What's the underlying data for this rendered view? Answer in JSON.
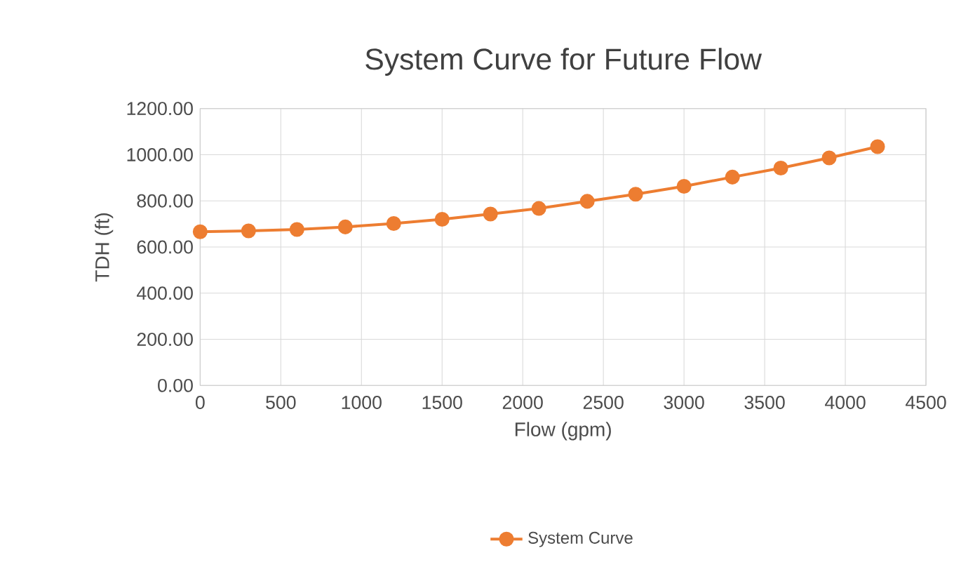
{
  "chart_data": {
    "type": "line",
    "title": "System Curve for Future Flow",
    "xlabel": "Flow (gpm)",
    "ylabel": "TDH (ft)",
    "x": [
      0,
      300,
      600,
      900,
      1200,
      1500,
      1800,
      2100,
      2400,
      2700,
      3000,
      3300,
      3600,
      3900,
      4200
    ],
    "series": [
      {
        "name": "System Curve",
        "color": "#ed7d31",
        "values": [
          666,
          670,
          676,
          687,
          702,
          720,
          743,
          767,
          798,
          829,
          863,
          903,
          942,
          986,
          1035
        ]
      }
    ],
    "xlim": [
      0,
      4500
    ],
    "xticks": [
      0,
      500,
      1000,
      1500,
      2000,
      2500,
      3000,
      3500,
      4000,
      4500
    ],
    "ylim": [
      0,
      1200
    ],
    "yticks": [
      {
        "value": 0,
        "label": "0.00"
      },
      {
        "value": 200,
        "label": "200.00"
      },
      {
        "value": 400,
        "label": "400.00"
      },
      {
        "value": 600,
        "label": "600.00"
      },
      {
        "value": 800,
        "label": "800.00"
      },
      {
        "value": 1000,
        "label": "1000.00"
      },
      {
        "value": 1200,
        "label": "1200.00"
      }
    ],
    "grid": true,
    "legend": "bottom",
    "marker": "circle",
    "line_style": "solid"
  }
}
